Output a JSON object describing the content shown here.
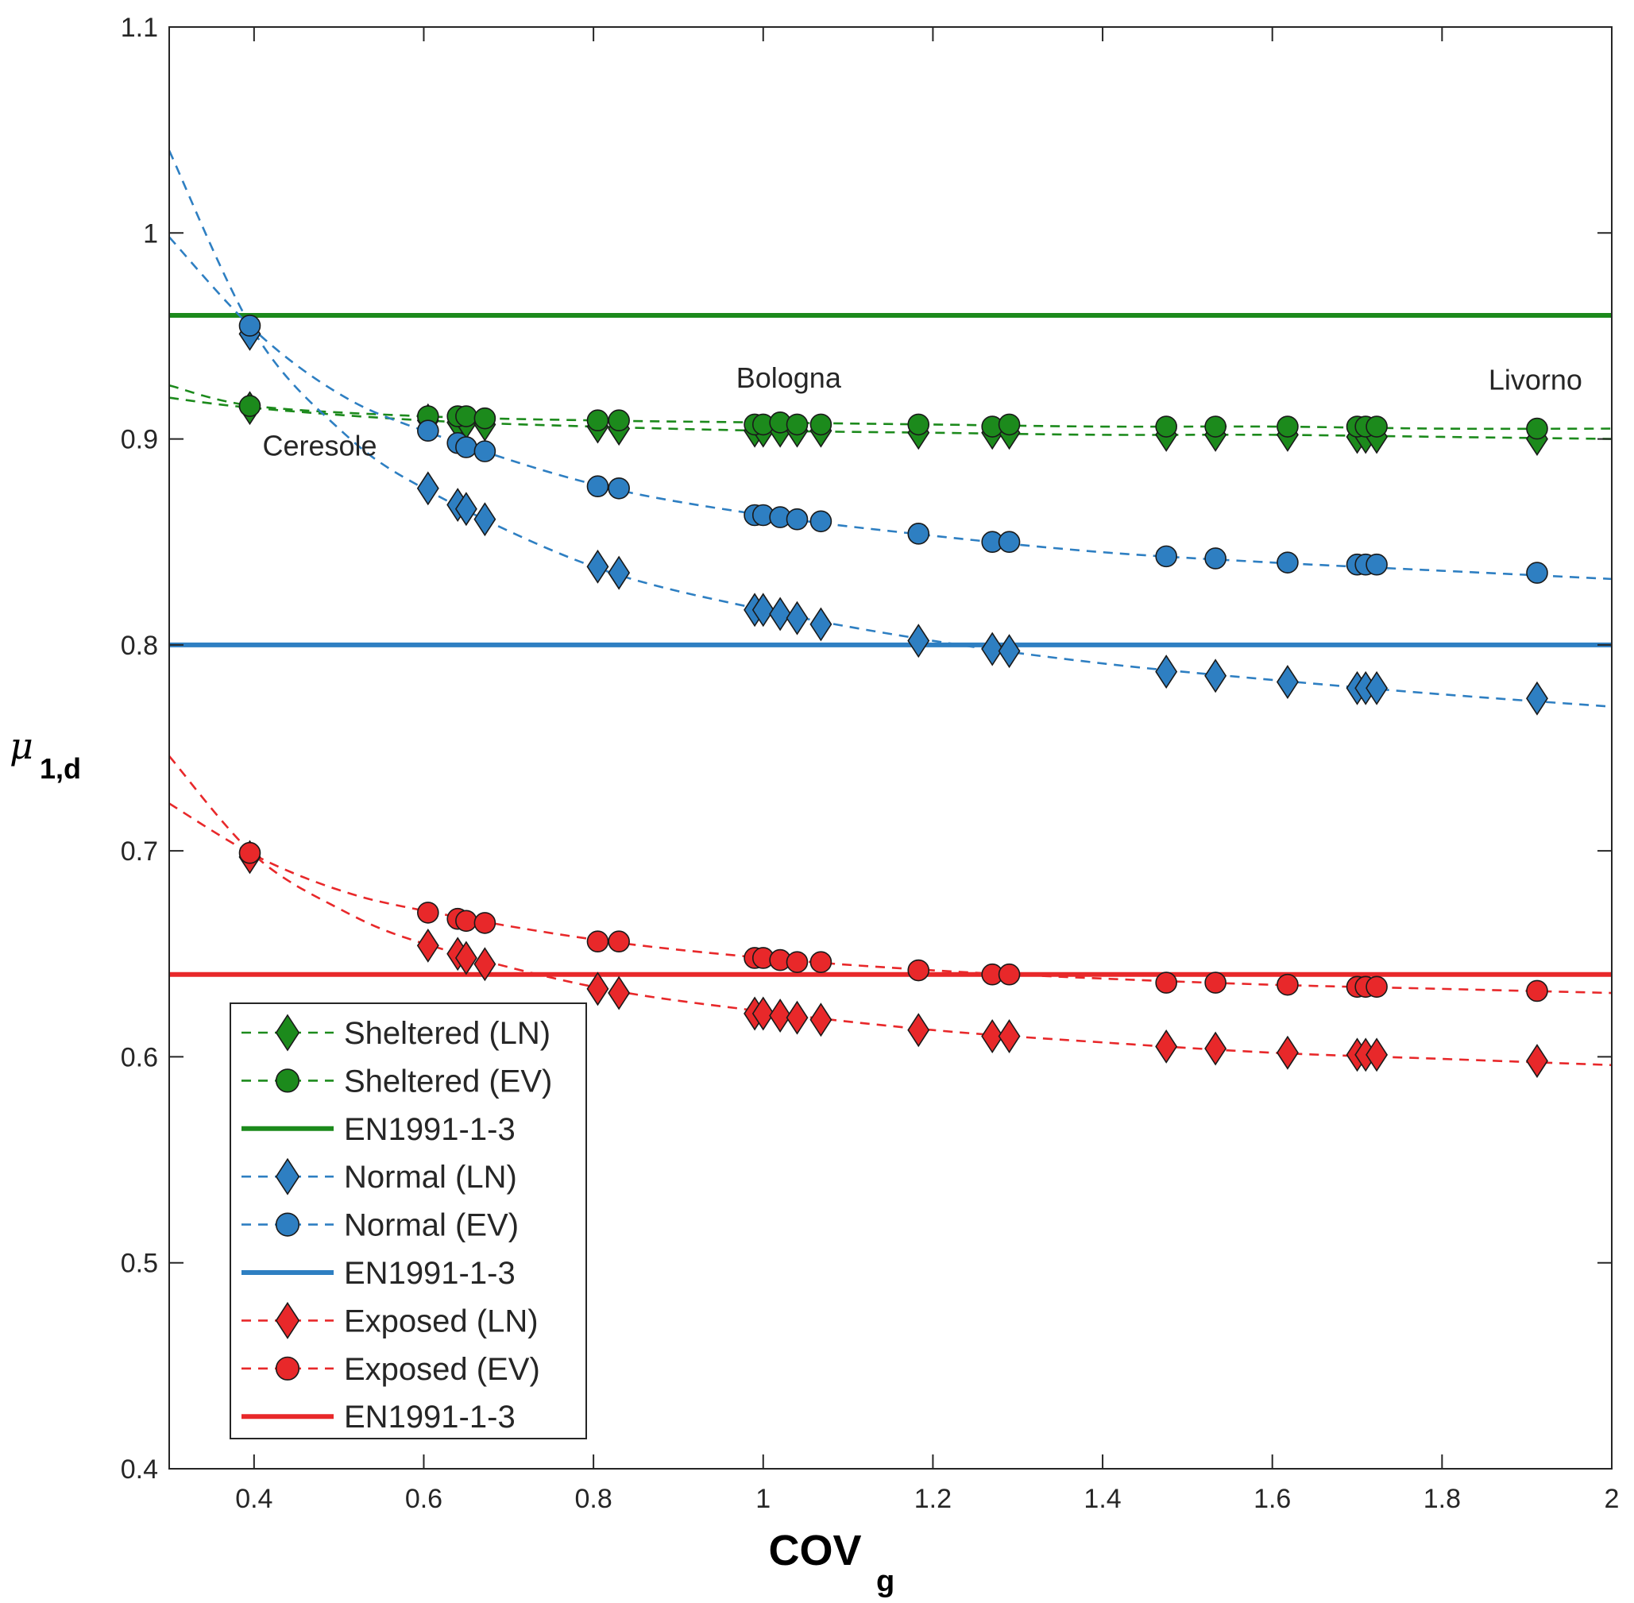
{
  "chart_data": {
    "type": "scatter",
    "xlabel": "COV",
    "xlabel_sub": "g",
    "ylabel": "μ",
    "ylabel_sub": "1,d",
    "xlim": [
      0.3,
      2.0
    ],
    "ylim": [
      0.4,
      1.1
    ],
    "xticks": [
      0.4,
      0.6,
      0.8,
      1.0,
      1.2,
      1.4,
      1.6,
      1.8,
      2.0
    ],
    "xtick_labels": [
      "0.4",
      "0.6",
      "0.8",
      "1",
      "1.2",
      "1.4",
      "1.6",
      "1.8",
      "2"
    ],
    "yticks": [
      0.4,
      0.5,
      0.6,
      0.7,
      0.8,
      0.9,
      1.0,
      1.1
    ],
    "ytick_labels": [
      "0.4",
      "0.5",
      "0.6",
      "0.7",
      "0.8",
      "0.9",
      "1",
      "1.1"
    ],
    "grid": false,
    "legend_position": "bottom-left",
    "annotations": [
      {
        "text": "Ceresole",
        "x": 0.41,
        "y": 0.892
      },
      {
        "text": "Bologna",
        "x": 1.03,
        "y": 0.925
      },
      {
        "text": "Livorno",
        "x": 1.91,
        "y": 0.924
      }
    ],
    "x_points": [
      0.395,
      0.605,
      0.64,
      0.65,
      0.672,
      0.805,
      0.83,
      0.99,
      1.0,
      1.02,
      1.04,
      1.068,
      1.183,
      1.27,
      1.29,
      1.475,
      1.533,
      1.618,
      1.7,
      1.71,
      1.723,
      1.912
    ],
    "series": [
      {
        "name": "Sheltered (LN)",
        "color": "#1c8a1c",
        "marker": "diamond",
        "line": "dashed",
        "values": [
          0.915,
          0.909,
          0.908,
          0.908,
          0.907,
          0.906,
          0.905,
          0.904,
          0.904,
          0.904,
          0.904,
          0.904,
          0.903,
          0.903,
          0.903,
          0.902,
          0.902,
          0.902,
          0.901,
          0.901,
          0.901,
          0.9
        ],
        "fit": {
          "x": [
            0.3,
            0.4,
            0.6,
            0.8,
            1.0,
            1.2,
            1.4,
            1.6,
            1.8,
            2.0
          ],
          "y": [
            0.92,
            0.915,
            0.909,
            0.906,
            0.904,
            0.903,
            0.902,
            0.902,
            0.901,
            0.9
          ]
        }
      },
      {
        "name": "Sheltered (EV)",
        "color": "#1c8a1c",
        "marker": "circle",
        "line": "dashed",
        "values": [
          0.916,
          0.911,
          0.911,
          0.911,
          0.91,
          0.909,
          0.909,
          0.907,
          0.907,
          0.908,
          0.907,
          0.907,
          0.907,
          0.906,
          0.907,
          0.906,
          0.906,
          0.906,
          0.906,
          0.906,
          0.906,
          0.905
        ],
        "fit": {
          "x": [
            0.3,
            0.4,
            0.6,
            0.8,
            1.0,
            1.2,
            1.4,
            1.6,
            1.8,
            2.0
          ],
          "y": [
            0.926,
            0.916,
            0.911,
            0.909,
            0.908,
            0.907,
            0.906,
            0.906,
            0.905,
            0.905
          ]
        }
      },
      {
        "name": "EN1991-1-3",
        "color": "#1c8a1c",
        "line": "solid",
        "constant": 0.96
      },
      {
        "name": "Normal (LN)",
        "color": "#2e7fc2",
        "marker": "diamond",
        "line": "dashed",
        "values": [
          0.951,
          0.876,
          0.868,
          0.866,
          0.861,
          0.838,
          0.835,
          0.817,
          0.817,
          0.815,
          0.813,
          0.81,
          0.802,
          0.798,
          0.797,
          0.787,
          0.785,
          0.782,
          0.779,
          0.779,
          0.779,
          0.774
        ],
        "fit": {
          "x": [
            0.3,
            0.4,
            0.5,
            0.6,
            0.8,
            1.0,
            1.2,
            1.4,
            1.6,
            1.8,
            2.0
          ],
          "y": [
            1.04,
            0.952,
            0.905,
            0.876,
            0.838,
            0.817,
            0.802,
            0.791,
            0.783,
            0.776,
            0.77
          ]
        }
      },
      {
        "name": "Normal (EV)",
        "color": "#2e7fc2",
        "marker": "circle",
        "line": "dashed",
        "values": [
          0.955,
          0.904,
          0.898,
          0.896,
          0.894,
          0.877,
          0.876,
          0.863,
          0.863,
          0.862,
          0.861,
          0.86,
          0.854,
          0.85,
          0.85,
          0.843,
          0.842,
          0.84,
          0.839,
          0.839,
          0.839,
          0.835
        ],
        "fit": {
          "x": [
            0.3,
            0.4,
            0.5,
            0.6,
            0.8,
            1.0,
            1.2,
            1.4,
            1.6,
            1.8,
            2.0
          ],
          "y": [
            0.998,
            0.953,
            0.922,
            0.904,
            0.878,
            0.863,
            0.853,
            0.845,
            0.84,
            0.836,
            0.832
          ]
        }
      },
      {
        "name": "EN1991-1-3",
        "color": "#2e7fc2",
        "line": "solid",
        "constant": 0.8
      },
      {
        "name": "Exposed (LN)",
        "color": "#e8282a",
        "marker": "diamond",
        "line": "dashed",
        "values": [
          0.697,
          0.654,
          0.65,
          0.648,
          0.645,
          0.633,
          0.631,
          0.621,
          0.621,
          0.62,
          0.619,
          0.618,
          0.613,
          0.61,
          0.61,
          0.605,
          0.604,
          0.602,
          0.601,
          0.601,
          0.601,
          0.598
        ],
        "fit": {
          "x": [
            0.3,
            0.4,
            0.5,
            0.6,
            0.8,
            1.0,
            1.2,
            1.4,
            1.6,
            1.8,
            2.0
          ],
          "y": [
            0.746,
            0.698,
            0.672,
            0.655,
            0.634,
            0.622,
            0.613,
            0.607,
            0.602,
            0.599,
            0.596
          ]
        }
      },
      {
        "name": "Exposed (EV)",
        "color": "#e8282a",
        "marker": "circle",
        "line": "dashed",
        "values": [
          0.699,
          0.67,
          0.667,
          0.666,
          0.665,
          0.656,
          0.656,
          0.648,
          0.648,
          0.647,
          0.646,
          0.646,
          0.642,
          0.64,
          0.64,
          0.636,
          0.636,
          0.635,
          0.634,
          0.634,
          0.634,
          0.632
        ],
        "fit": {
          "x": [
            0.3,
            0.4,
            0.5,
            0.6,
            0.8,
            1.0,
            1.2,
            1.4,
            1.6,
            1.8,
            2.0
          ],
          "y": [
            0.723,
            0.698,
            0.681,
            0.671,
            0.657,
            0.648,
            0.642,
            0.638,
            0.635,
            0.633,
            0.631
          ]
        }
      },
      {
        "name": "EN1991-1-3",
        "color": "#e8282a",
        "line": "solid",
        "constant": 0.64
      }
    ]
  }
}
